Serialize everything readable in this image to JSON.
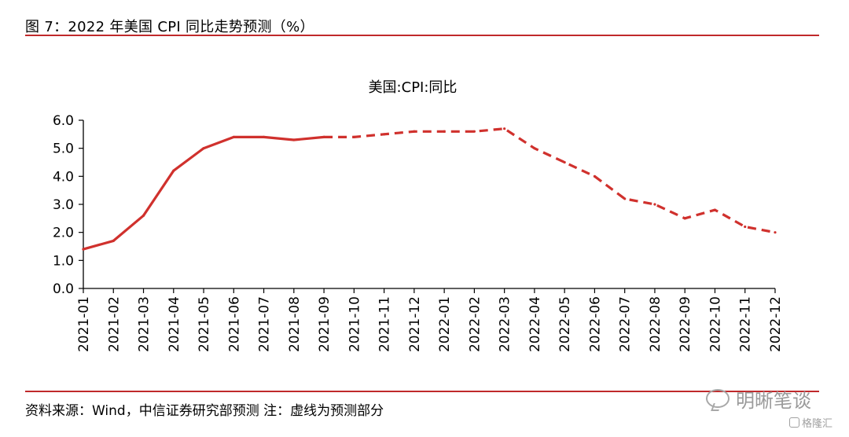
{
  "figure": {
    "title": "图 7：2022 年美国 CPI 同比走势预测（%）",
    "source": "资料来源：Wind，中信证券研究部预测  注：虚线为预测部分",
    "watermark": "明晰笔谈",
    "watermark2": "格隆汇",
    "rule_color": "#c0292b"
  },
  "chart_data": {
    "type": "line",
    "title": "美国:CPI:同比",
    "xlabel": "",
    "ylabel": "",
    "ylim": [
      0,
      6
    ],
    "y_ticks": [
      "0.0",
      "1.0",
      "2.0",
      "3.0",
      "4.0",
      "5.0",
      "6.0"
    ],
    "grid": false,
    "legend": "none",
    "categories": [
      "2021-01",
      "2021-02",
      "2021-03",
      "2021-04",
      "2021-05",
      "2021-06",
      "2021-07",
      "2021-08",
      "2021-09",
      "2021-10",
      "2021-11",
      "2021-12",
      "2022-01",
      "2022-02",
      "2022-03",
      "2022-04",
      "2022-05",
      "2022-06",
      "2022-07",
      "2022-08",
      "2022-09",
      "2022-10",
      "2022-11",
      "2022-12"
    ],
    "series": [
      {
        "color": "#d0312d",
        "values": [
          1.4,
          1.7,
          2.6,
          4.2,
          5.0,
          5.4,
          5.4,
          5.3,
          5.4,
          5.4,
          5.5,
          5.6,
          5.6,
          5.6,
          5.7,
          5.0,
          4.5,
          4.0,
          3.2,
          3.0,
          2.5,
          2.8,
          2.2,
          2.0
        ],
        "actual_through": "2021-09"
      }
    ]
  }
}
